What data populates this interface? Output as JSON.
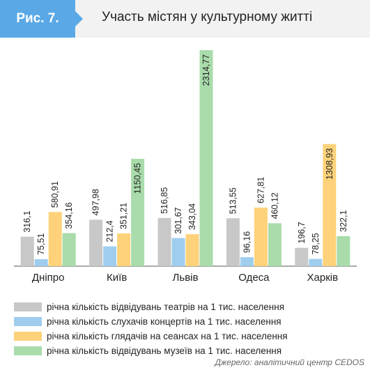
{
  "figure": {
    "label": "Рис. 7.",
    "title": "Участь містян у культурному житті"
  },
  "colors": {
    "accent": "#5aa9e6",
    "theatre": "#c8c8c8",
    "concert": "#9fcdee",
    "cinema": "#fdd27a",
    "museum": "#a9dbab"
  },
  "chart_data": {
    "type": "bar",
    "categories": [
      "Дніпро",
      "Київ",
      "Львів",
      "Одеса",
      "Харків"
    ],
    "series": [
      {
        "name": "річна кількість відвідувань театрів на 1 тис. населення",
        "color": "#c8c8c8",
        "values": [
          316.1,
          497.98,
          516.85,
          513.55,
          196.7
        ],
        "labels": [
          "316,1",
          "497,98",
          "516,85",
          "513,55",
          "196,7"
        ]
      },
      {
        "name": "річна кількість слухачів концертів  на 1 тис. населення",
        "color": "#9fcdee",
        "values": [
          75.51,
          212.4,
          301.67,
          96.16,
          78.25
        ],
        "labels": [
          "75,51",
          "212,4",
          "301,67",
          "96,16",
          "78,25"
        ]
      },
      {
        "name": "річна кількість глядачів на сеансах  на 1 тис. населення",
        "color": "#fdd27a",
        "values": [
          580.91,
          351.21,
          343.04,
          627.81,
          1308.93
        ],
        "labels": [
          "580,91",
          "351,21",
          "343,04",
          "627,81",
          "1308,93"
        ]
      },
      {
        "name": "річна кількість відвідувань музеїв на 1 тис. населення",
        "color": "#a9dbab",
        "values": [
          354.16,
          1150.45,
          2314.77,
          460.12,
          322.1
        ],
        "labels": [
          "354,16",
          "1150,45",
          "2314,77",
          "460,12",
          "322,1"
        ]
      }
    ],
    "ylim": [
      0,
      2314.77
    ]
  },
  "source": "Джерело: аналітичний центр  CEDOS"
}
